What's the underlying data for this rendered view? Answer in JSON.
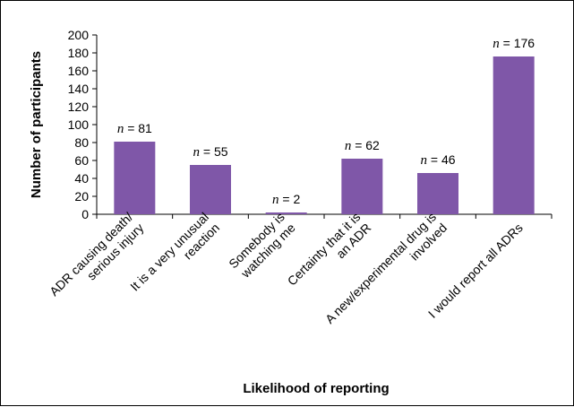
{
  "chart_data": {
    "type": "bar",
    "categories": [
      [
        "ADR causing death/",
        "serious injury"
      ],
      [
        "It is a very unusual",
        "reaction"
      ],
      [
        "Somebody is",
        "watching me"
      ],
      [
        "Certainty that it is",
        "an ADR"
      ],
      [
        "A new/experimental drug is",
        "involved"
      ],
      [
        "I would report all ADRs"
      ]
    ],
    "values": [
      81,
      55,
      2,
      62,
      46,
      176
    ],
    "data_labels": [
      {
        "prefix": "n",
        "suffix": " = 81"
      },
      {
        "prefix": "n",
        "suffix": " = 55"
      },
      {
        "prefix": "n",
        "suffix": " = 2"
      },
      {
        "prefix": "n",
        "suffix": " = 62"
      },
      {
        "prefix": "n",
        "suffix": " = 46"
      },
      {
        "prefix": "n",
        "suffix": " = 176"
      }
    ],
    "xlabel": "Likelihood of reporting",
    "ylabel": "Number of participants",
    "ylim": [
      0,
      200
    ],
    "yticks": [
      "0",
      "20",
      "40",
      "60",
      "80",
      "100",
      "120",
      "140",
      "160",
      "180",
      "200"
    ],
    "grid": false,
    "legend": "none",
    "bar_color": "#7F57A8"
  }
}
